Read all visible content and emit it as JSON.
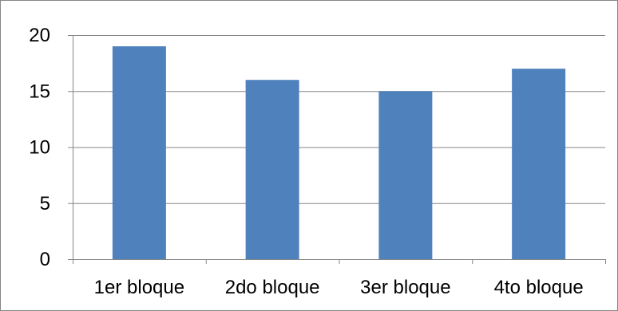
{
  "chart_data": {
    "type": "bar",
    "categories": [
      "1er bloque",
      "2do bloque",
      "3er bloque",
      "4to bloque"
    ],
    "values": [
      19,
      16,
      15,
      17
    ],
    "title": "",
    "xlabel": "",
    "ylabel": "",
    "ylim": [
      0,
      20
    ],
    "yticks": [
      0,
      5,
      10,
      15,
      20
    ],
    "ytick_labels": [
      "0",
      "5",
      "10",
      "15",
      "20"
    ],
    "grid": true,
    "legend": "none",
    "colors": {
      "bar": "#4F81BD",
      "grid": "#868686",
      "axis": "#868686",
      "border": "#868686"
    }
  }
}
